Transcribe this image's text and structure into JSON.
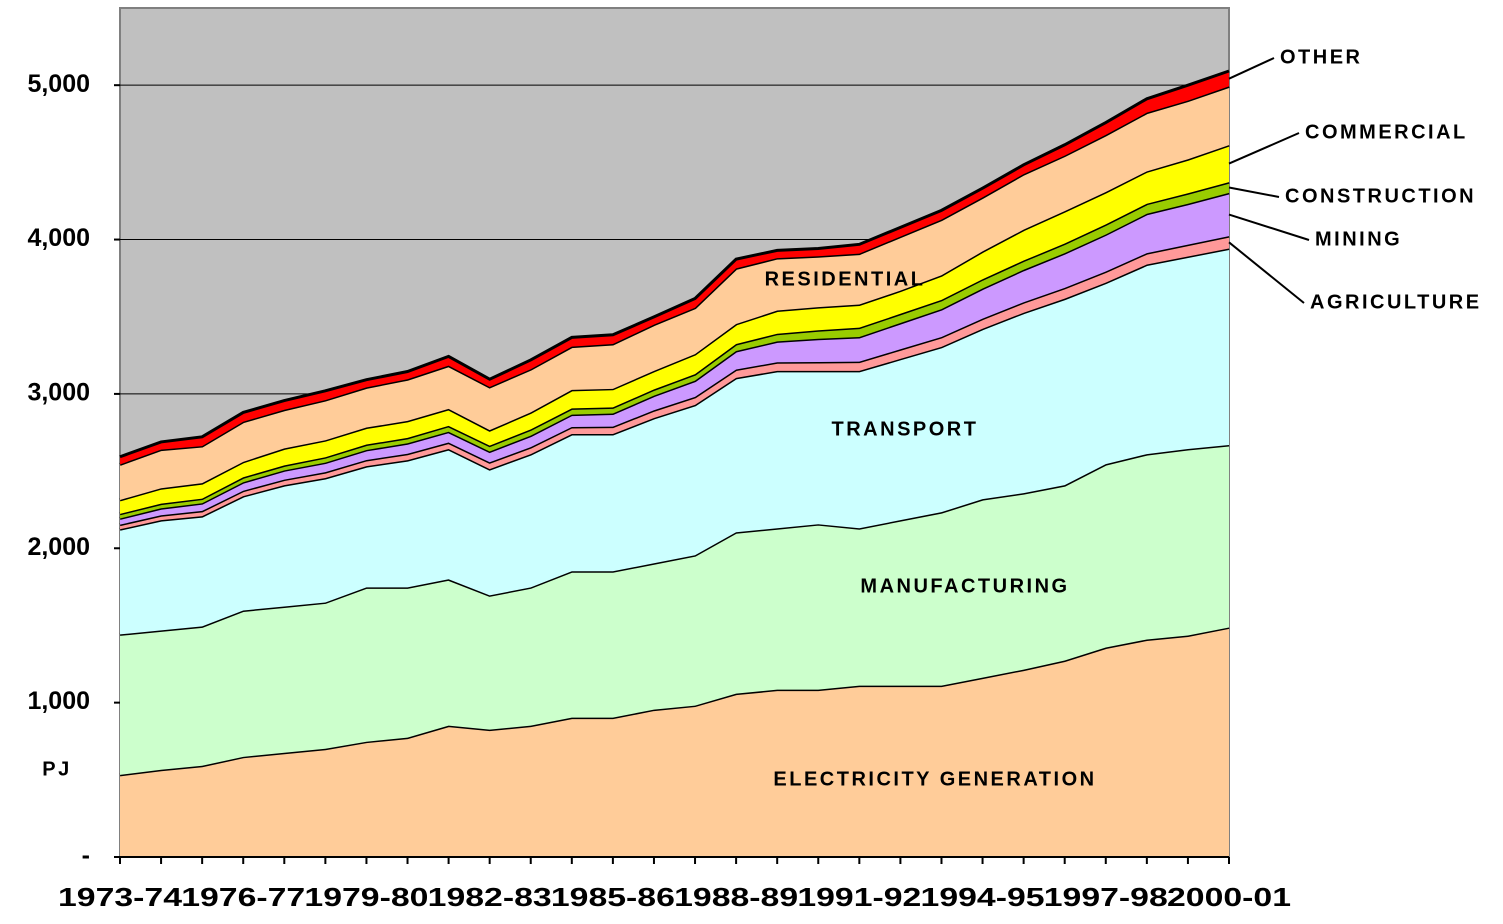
{
  "chart_data": {
    "type": "stacked_area",
    "y_label": "PJ",
    "categories": [
      "1973-74",
      null,
      null,
      "1976-77",
      null,
      null,
      "1979-80",
      null,
      null,
      "1982-83",
      null,
      null,
      "1985-86",
      null,
      null,
      "1988-89",
      null,
      null,
      "1991-92",
      null,
      null,
      "1994-95",
      null,
      null,
      "1997-98",
      null,
      null,
      "2000-01"
    ],
    "ylim": [
      0,
      5500
    ],
    "yticks": [
      {
        "value": 0,
        "label": "-"
      },
      {
        "value": 1000,
        "label": "1,000"
      },
      {
        "value": 2000,
        "label": "2,000"
      },
      {
        "value": 3000,
        "label": "3,000"
      },
      {
        "value": 4000,
        "label": "4,000"
      },
      {
        "value": 5000,
        "label": "5,000"
      }
    ],
    "grid": true,
    "background": "#c0c0c0",
    "series": [
      {
        "name": "ELECTRICITY GENERATION",
        "color": "#ffcc99",
        "values": [
          532,
          565,
          591,
          649,
          675,
          701,
          747,
          773,
          851,
          825,
          851,
          903,
          903,
          955,
          981,
          1058,
          1084,
          1084,
          1110,
          1110,
          1110,
          1162,
          1214,
          1273,
          1357,
          1409,
          1435,
          1487
        ]
      },
      {
        "name": "MANUFACTURING",
        "color": "#ccffcc",
        "values": [
          910,
          903,
          903,
          948,
          948,
          948,
          1000,
          974,
          948,
          870,
          896,
          948,
          948,
          948,
          974,
          1046,
          1046,
          1072,
          1020,
          1072,
          1124,
          1156,
          1143,
          1136,
          1188,
          1201,
          1208,
          1182
        ]
      },
      {
        "name": "TRANSPORT",
        "color": "#ccffff",
        "values": [
          681,
          714,
          714,
          741,
          786,
          806,
          785,
          824,
          844,
          818,
          863,
          889,
          889,
          941,
          974,
          1000,
          1019,
          993,
          1019,
          1045,
          1071,
          1104,
          1169,
          1208,
          1176,
          1228,
          1247,
          1273
        ]
      },
      {
        "name": "AGRICULTURE",
        "color": "#ff9999",
        "values": [
          30,
          32,
          34,
          35,
          36,
          38,
          40,
          41,
          42,
          44,
          45,
          46,
          48,
          50,
          52,
          54,
          56,
          58,
          60,
          62,
          64,
          66,
          68,
          70,
          72,
          74,
          77,
          80
        ]
      },
      {
        "name": "MINING",
        "color": "#cc99ff",
        "values": [
          40,
          45,
          50,
          55,
          60,
          62,
          65,
          68,
          70,
          70,
          75,
          80,
          85,
          95,
          105,
          120,
          135,
          150,
          160,
          170,
          180,
          195,
          210,
          225,
          240,
          255,
          265,
          280
        ]
      },
      {
        "name": "CONSTRUCTION",
        "color": "#99cc00",
        "values": [
          30,
          30,
          30,
          32,
          32,
          35,
          35,
          35,
          38,
          38,
          40,
          40,
          40,
          40,
          42,
          45,
          50,
          55,
          60,
          60,
          60,
          60,
          60,
          62,
          65,
          65,
          68,
          70
        ]
      },
      {
        "name": "COMMERCIAL",
        "color": "#ffff00",
        "values": [
          90,
          100,
          100,
          100,
          110,
          110,
          110,
          110,
          110,
          100,
          110,
          120,
          120,
          120,
          130,
          130,
          150,
          150,
          150,
          150,
          160,
          180,
          200,
          210,
          210,
          210,
          220,
          240
        ]
      },
      {
        "name": "RESIDENTIAL",
        "color": "#ffcc99",
        "values": [
          230,
          250,
          240,
          260,
          250,
          260,
          260,
          270,
          280,
          280,
          280,
          280,
          290,
          300,
          300,
          360,
          340,
          330,
          330,
          350,
          360,
          350,
          360,
          360,
          370,
          380,
          380,
          380
        ]
      },
      {
        "name": "OTHER",
        "color": "#ff0000",
        "values": [
          50,
          50,
          60,
          60,
          60,
          60,
          50,
          50,
          60,
          50,
          60,
          60,
          60,
          50,
          60,
          60,
          50,
          50,
          60,
          60,
          60,
          60,
          60,
          70,
          80,
          90,
          100,
          100
        ]
      }
    ]
  }
}
